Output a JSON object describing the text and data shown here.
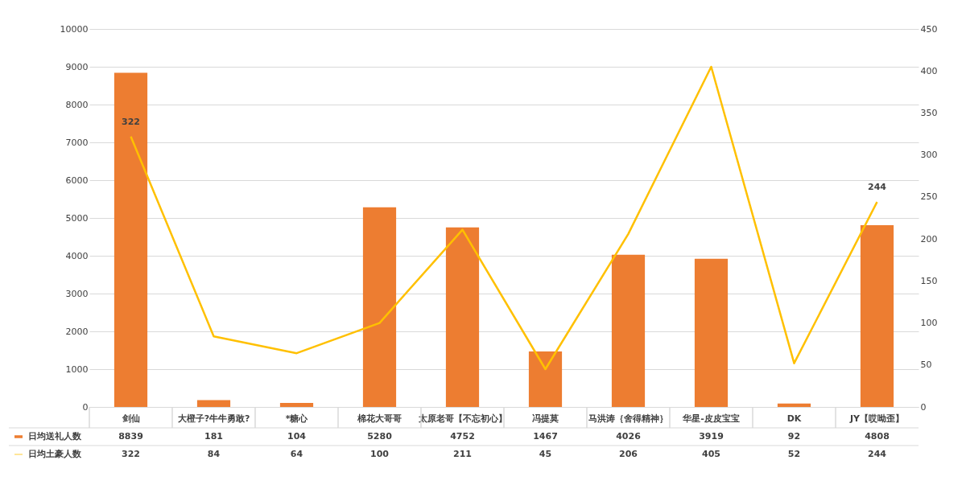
{
  "chart_data": {
    "type": "bar",
    "categories": [
      "剑仙",
      "大橙子?牛牛勇敢?",
      "*糖心",
      "棉花大哥哥",
      "太原老哥【不忘初心】",
      "冯提莫",
      "马洪涛｛舍得精神｝",
      "华星-皮皮宝宝",
      "DK",
      "JY【哎呦歪】"
    ],
    "series": [
      {
        "name": "日均送礼人数",
        "color": "#ed7d31",
        "values": [
          8839,
          181,
          104,
          5280,
          4752,
          1467,
          4026,
          3919,
          92,
          4808
        ]
      },
      {
        "name": "日均土豪人数",
        "type": "line",
        "axis": "y2",
        "color": "#ffc000",
        "values": [
          322,
          84,
          64,
          100,
          211,
          45,
          206,
          405,
          52,
          244
        ]
      }
    ],
    "annotations": [
      "322",
      "244"
    ],
    "ylim": [
      0,
      10000
    ],
    "yticks": [
      0,
      1000,
      2000,
      3000,
      4000,
      5000,
      6000,
      7000,
      8000,
      9000,
      10000
    ],
    "y2lim": [
      0,
      450
    ],
    "y2ticks": [
      0,
      50,
      100,
      150,
      200,
      250,
      300,
      350,
      400,
      450
    ],
    "grid": "y",
    "legend": "bottom left",
    "data_labels": true
  }
}
